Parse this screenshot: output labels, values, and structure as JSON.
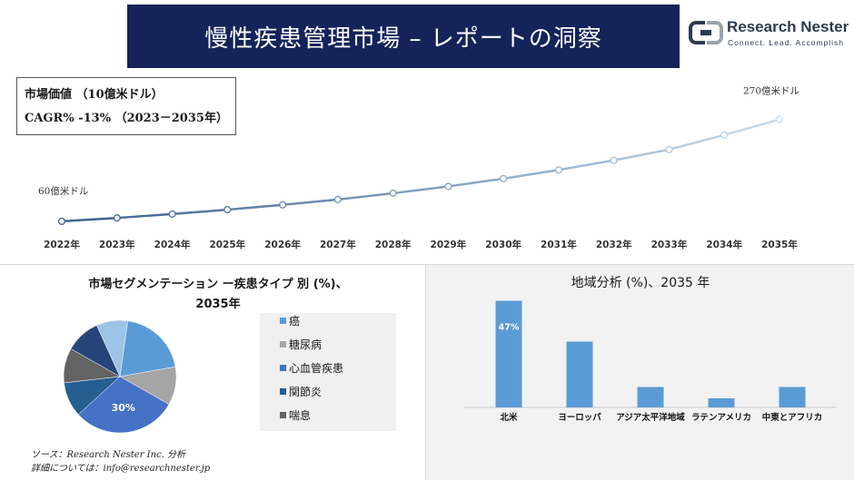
{
  "header": {
    "title": "慢性疾患管理市場 – レポートの洞察",
    "logo_name": "Research Nester",
    "logo_tagline": "Connect. Lead. Accomplish"
  },
  "info_box": {
    "line1": "市場価値 （10億米ドル）",
    "line2": "CAGR% -13% （2023－2035年）"
  },
  "colors": {
    "banner": "#14245a",
    "line_start": "#3a5f8c",
    "line_end": "#c8dcec",
    "bar": "#5b9bd5"
  },
  "chart_data": [
    {
      "type": "line",
      "x": [
        "2022年",
        "2023年",
        "2024年",
        "2025年",
        "2026年",
        "2027年",
        "2028年",
        "2029年",
        "2030年",
        "2031年",
        "2032年",
        "2033年",
        "2034年",
        "2035年"
      ],
      "series": [
        {
          "values": [
            60,
            67,
            75,
            84,
            94,
            105,
            118,
            132,
            148,
            166,
            186,
            208,
            238,
            270
          ]
        }
      ],
      "annotations": [
        {
          "text": "60億米ドル",
          "x": "2022年"
        },
        {
          "text": "270億米ドル",
          "x": "2035年"
        }
      ],
      "ylim": [
        0,
        290
      ],
      "grid": false
    },
    {
      "type": "pie",
      "title": "市場セグメンテーション ー疾患タイプ 別 (%)、",
      "subtitle": "2035年",
      "categories": [
        "癌",
        "糖尿病",
        "心血管疾患",
        "関節炎",
        "喘息"
      ],
      "values": [
        20,
        11,
        30,
        10,
        10
      ],
      "others": [
        {
          "value": 10
        },
        {
          "value": 9
        }
      ],
      "data_labels": [
        "30%"
      ],
      "colors": [
        "#5b9bd5",
        "#a5a5a5",
        "#4472c4",
        "#255e91",
        "#636363",
        "#264478",
        "#9dc3e6"
      ],
      "legend": "right"
    },
    {
      "type": "bar",
      "title": "地域分析 (%)、2035 年",
      "categories": [
        "北米",
        "ヨーロッパ",
        "アジア太平洋地域",
        "ラテンアメリカ",
        "中東とアフリカ"
      ],
      "values": [
        47,
        29,
        9,
        4,
        9
      ],
      "data_labels": [
        "47%"
      ],
      "ylim": [
        0,
        50
      ]
    }
  ],
  "source": {
    "line1": "ソース：Research Nester Inc. 分析",
    "line2": "詳細については：info@researchnester.jp"
  }
}
